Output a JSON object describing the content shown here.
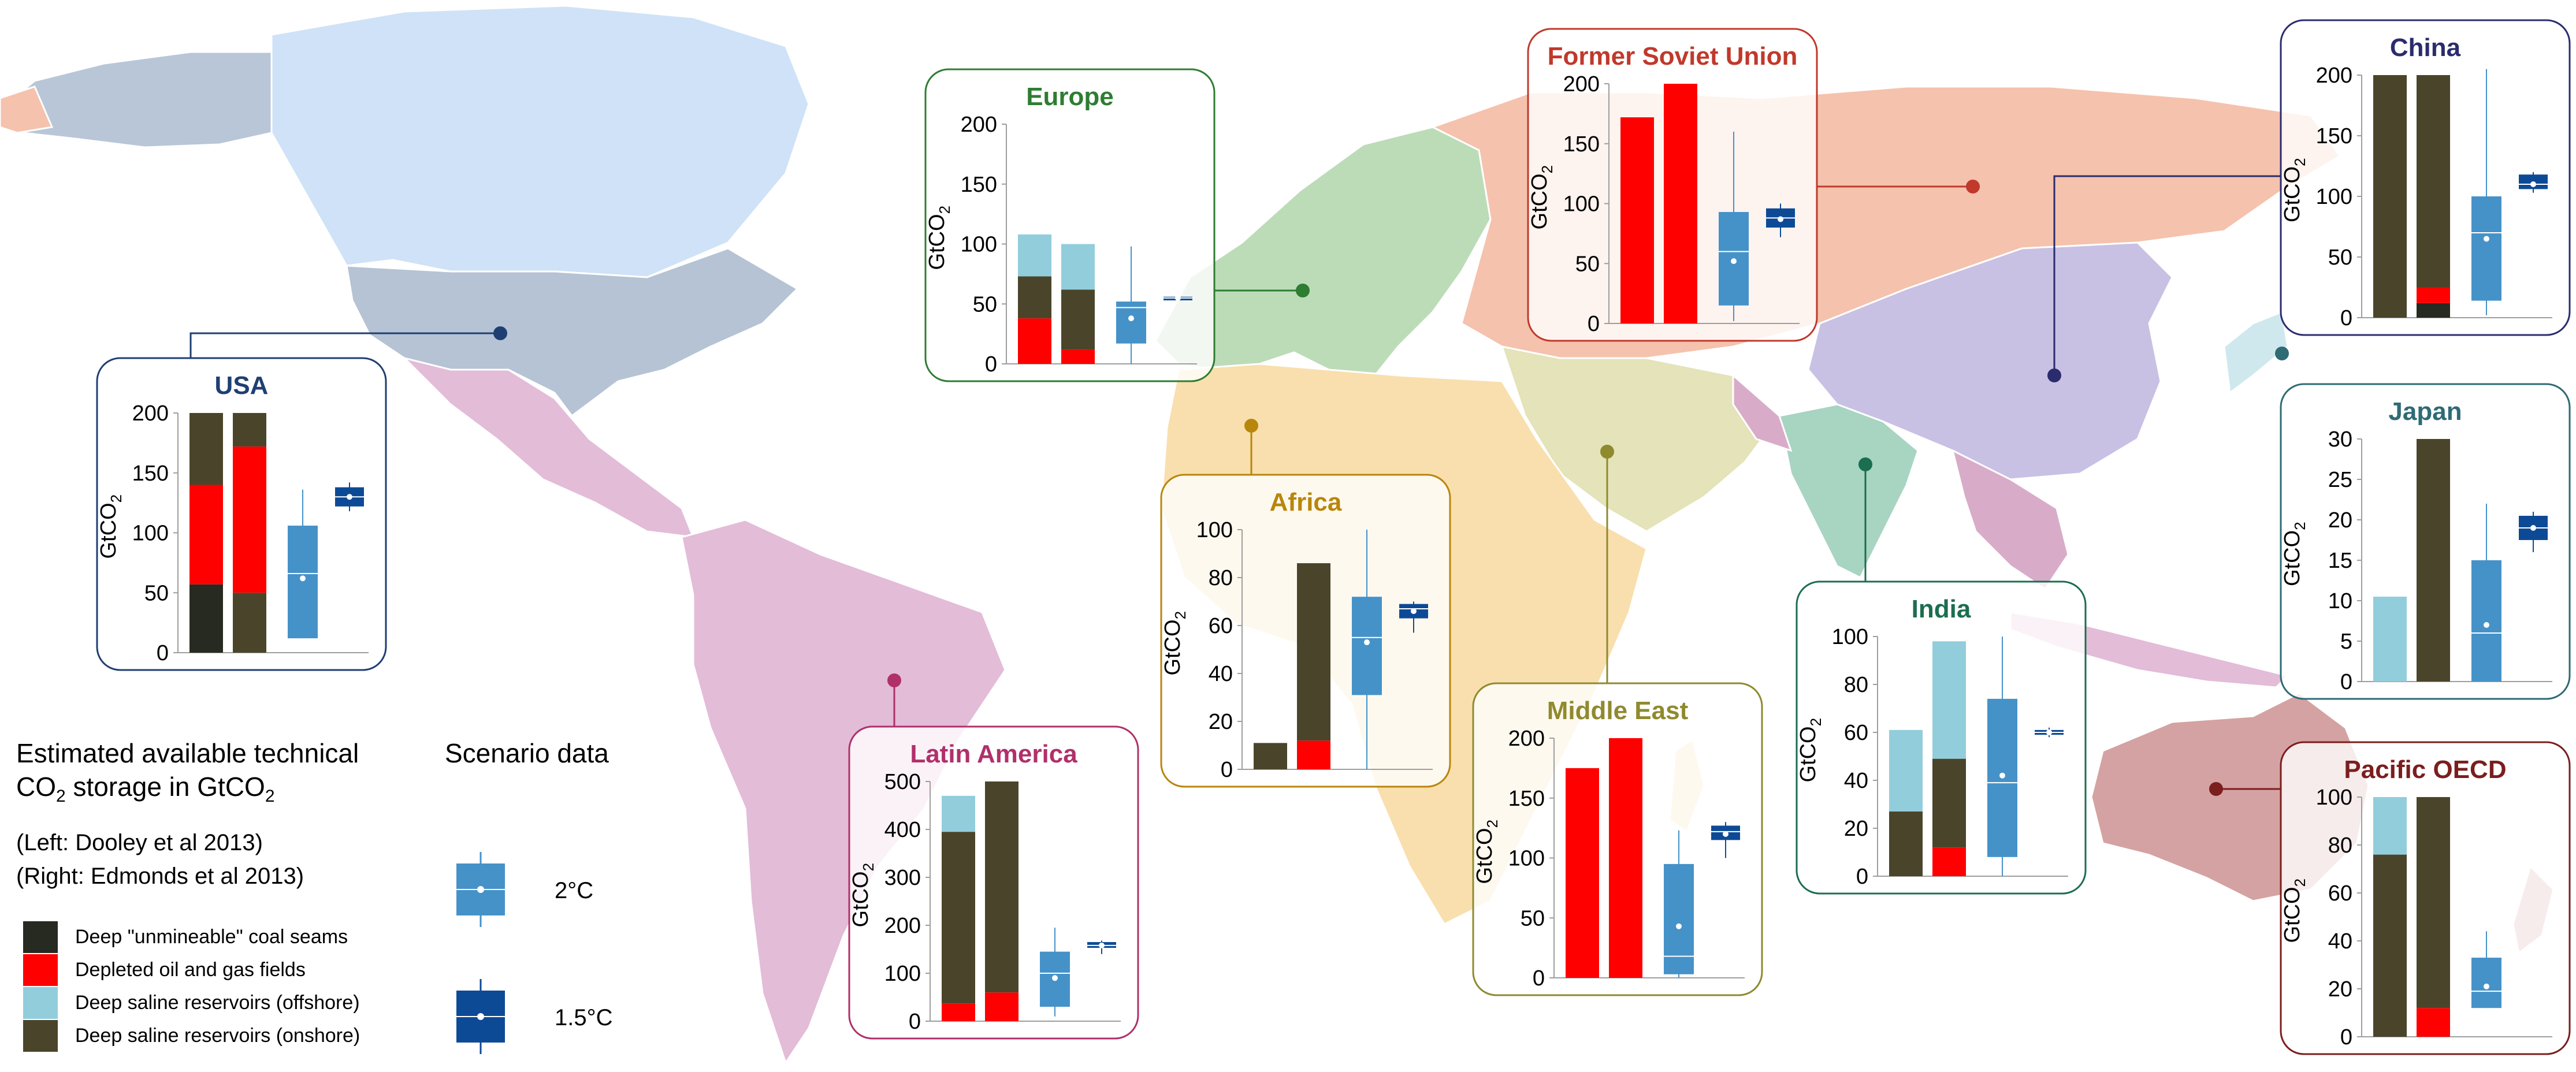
{
  "legend": {
    "title_line1": "Estimated available technical",
    "title_line2_prefix": "CO",
    "title_line2_sub": "2",
    "title_line2_mid": " storage in GtCO",
    "title_line2_sub2": "2",
    "left_source": "(Left: Dooley et al 2013)",
    "right_source": "(Right: Edmonds et al 2013)",
    "items": [
      {
        "label": "Deep \"unmineable\" coal seams",
        "color": "#262a20"
      },
      {
        "label": "Depleted oil and gas fields",
        "color": "#ff0000"
      },
      {
        "label": "Deep saline reservoirs (offshore)",
        "color": "#92cddc"
      },
      {
        "label": "Deep saline reservoirs (onshore)",
        "color": "#4a452a"
      }
    ]
  },
  "scenario_legend": {
    "title": "Scenario data",
    "items": [
      {
        "label": "2°C",
        "color": "#4592c9"
      },
      {
        "label": "1.5°C",
        "color": "#0d4a96"
      }
    ]
  },
  "colors": {
    "coal": "#262a20",
    "oilgas": "#ff0000",
    "offshore": "#92cddc",
    "onshore": "#4a452a",
    "box2": "#4592c9",
    "box15": "#0d4a96"
  },
  "chart_data": [
    {
      "type": "bar",
      "region": "USA",
      "title_color": "#1f3f73",
      "ylabel": "GtCO2",
      "ylim": [
        0,
        200
      ],
      "ticks": [
        0,
        50,
        100,
        150,
        200
      ],
      "bars": [
        {
          "coal": 57,
          "oilgas": 83,
          "offshore": 0,
          "onshore": 60
        },
        {
          "coal": 0,
          "oilgas": 0,
          "offshore": 0,
          "onshore": 200,
          "coal2": 50,
          "oilgas2": 122
        }
      ],
      "box2": {
        "min": 12,
        "q1": 12,
        "median": 66,
        "q3": 106,
        "max": 136,
        "mean": 62
      },
      "box15": {
        "min": 118,
        "q1": 122,
        "median": 130,
        "q3": 138,
        "max": 142,
        "mean": 130
      }
    },
    {
      "type": "bar",
      "region": "Europe",
      "title_color": "#2e7d32",
      "ylabel": "GtCO2",
      "ylim": [
        0,
        200
      ],
      "ticks": [
        0,
        50,
        100,
        150,
        200
      ],
      "bars": [
        {
          "coal": 0,
          "oilgas": 38,
          "onshore": 35,
          "offshore": 35
        },
        {
          "coal": 0,
          "oilgas": 12,
          "onshore": 50,
          "offshore": 38
        }
      ],
      "box2": {
        "min": 0,
        "q1": 17,
        "median": 47,
        "q3": 52,
        "max": 98,
        "mean": 38
      },
      "box15": {
        "min": 53,
        "q1": 53,
        "median": 55,
        "q3": 56,
        "max": 56,
        "mean": 55
      }
    },
    {
      "type": "bar",
      "region": "Former Soviet Union",
      "title_color": "#c0392b",
      "ylabel": "GtCO2",
      "ylim": [
        0,
        200
      ],
      "ticks": [
        0,
        50,
        100,
        150,
        200
      ],
      "bars": [
        {
          "coal": 0,
          "oilgas": 172,
          "onshore": 0,
          "offshore": 0
        },
        {
          "coal": 0,
          "oilgas": 200,
          "onshore": 0,
          "offshore": 0
        }
      ],
      "box2": {
        "min": 2,
        "q1": 15,
        "median": 60,
        "q3": 93,
        "max": 160,
        "mean": 52
      },
      "box15": {
        "min": 72,
        "q1": 80,
        "median": 88,
        "q3": 96,
        "max": 100,
        "mean": 87
      }
    },
    {
      "type": "bar",
      "region": "China",
      "title_color": "#2b2c6e",
      "ylabel": "GtCO2",
      "ylim": [
        0,
        200
      ],
      "ticks": [
        0,
        50,
        100,
        150,
        200
      ],
      "bars": [
        {
          "coal": 0,
          "oilgas": 0,
          "onshore": 200,
          "offshore": 0
        },
        {
          "coal": 12,
          "oilgas": 13,
          "onshore": 175,
          "offshore": 0
        }
      ],
      "box2": {
        "min": 2,
        "q1": 14,
        "median": 70,
        "q3": 100,
        "max": 205,
        "mean": 65
      },
      "box15": {
        "min": 103,
        "q1": 106,
        "median": 110,
        "q3": 118,
        "max": 120,
        "mean": 110
      }
    },
    {
      "type": "bar",
      "region": "Africa",
      "title_color": "#b8860b",
      "ylabel": "GtCO2",
      "ylim": [
        0,
        100
      ],
      "ticks": [
        0,
        20,
        40,
        60,
        80,
        100
      ],
      "bars": [
        {
          "coal": 0,
          "oilgas": 0,
          "onshore": 11,
          "offshore": 0
        },
        {
          "coal": 0,
          "oilgas": 12,
          "onshore": 74,
          "offshore": 0
        }
      ],
      "box2": {
        "min": 0,
        "q1": 31,
        "median": 55,
        "q3": 72,
        "max": 100,
        "mean": 53
      },
      "box15": {
        "min": 57,
        "q1": 63,
        "median": 67,
        "q3": 69,
        "max": 70,
        "mean": 66
      }
    },
    {
      "type": "bar",
      "region": "Latin America",
      "title_color": "#b0306a",
      "ylabel": "GtCO2",
      "ylim": [
        0,
        500
      ],
      "ticks": [
        0,
        100,
        200,
        300,
        400,
        500
      ],
      "bars": [
        {
          "coal": 0,
          "oilgas": 37,
          "onshore": 358,
          "offshore": 75
        },
        {
          "coal": 0,
          "oilgas": 60,
          "onshore": 440,
          "offshore": 0
        }
      ],
      "box2": {
        "min": 10,
        "q1": 30,
        "median": 100,
        "q3": 145,
        "max": 195,
        "mean": 90
      },
      "box15": {
        "min": 140,
        "q1": 153,
        "median": 158,
        "q3": 165,
        "max": 168,
        "mean": 158
      }
    },
    {
      "type": "bar",
      "region": "Middle East",
      "title_color": "#8f8a2e",
      "ylabel": "GtCO2",
      "ylim": [
        0,
        200
      ],
      "ticks": [
        0,
        50,
        100,
        150,
        200
      ],
      "bars": [
        {
          "coal": 0,
          "oilgas": 175,
          "onshore": 0,
          "offshore": 0
        },
        {
          "coal": 0,
          "oilgas": 200,
          "onshore": 0,
          "offshore": 0
        }
      ],
      "box2": {
        "min": 0,
        "q1": 3,
        "median": 18,
        "q3": 95,
        "max": 123,
        "mean": 43
      },
      "box15": {
        "min": 100,
        "q1": 115,
        "median": 122,
        "q3": 127,
        "max": 130,
        "mean": 120
      }
    },
    {
      "type": "bar",
      "region": "India",
      "title_color": "#1b6e4f",
      "ylabel": "GtCO2",
      "ylim": [
        0,
        100
      ],
      "ticks": [
        0,
        20,
        40,
        60,
        80,
        100
      ],
      "bars": [
        {
          "coal": 0,
          "oilgas": 0,
          "onshore": 27,
          "offshore": 34
        },
        {
          "coal": 0,
          "oilgas": 12,
          "onshore": 37,
          "offshore": 49
        }
      ],
      "box2": {
        "min": 0,
        "q1": 8,
        "median": 39,
        "q3": 74,
        "max": 100,
        "mean": 42
      },
      "box15": {
        "min": 58,
        "q1": 59,
        "median": 60,
        "q3": 61,
        "max": 62,
        "mean": 60
      }
    },
    {
      "type": "bar",
      "region": "Japan",
      "title_color": "#2e6b75",
      "ylabel": "GtCO2",
      "ylim": [
        0,
        30
      ],
      "ticks": [
        0,
        5,
        10,
        15,
        20,
        25,
        30
      ],
      "bars": [
        {
          "coal": 0,
          "oilgas": 0,
          "onshore": 0,
          "offshore": 10.5
        },
        {
          "coal": 0,
          "oilgas": 0,
          "onshore": 30,
          "offshore": 0
        }
      ],
      "box2": {
        "min": 0,
        "q1": 0,
        "median": 6,
        "q3": 15,
        "max": 22,
        "mean": 7
      },
      "box15": {
        "min": 16,
        "q1": 17.5,
        "median": 19,
        "q3": 20.5,
        "max": 21,
        "mean": 19
      }
    },
    {
      "type": "bar",
      "region": "Pacific OECD",
      "title_color": "#7b1e1e",
      "ylabel": "GtCO2",
      "ylim": [
        0,
        100
      ],
      "ticks": [
        0,
        20,
        40,
        60,
        80,
        100
      ],
      "bars": [
        {
          "coal": 0,
          "oilgas": 0,
          "onshore": 76,
          "offshore": 24
        },
        {
          "coal": 0,
          "oilgas": 12,
          "onshore": 88,
          "offshore": 0
        }
      ],
      "box2": {
        "min": 12,
        "q1": 12,
        "median": 19,
        "q3": 33,
        "max": 44,
        "mean": 21
      },
      "box15": {
        "min": 0,
        "q1": 0,
        "median": 0,
        "q3": 0,
        "max": 0,
        "mean": 0
      }
    }
  ]
}
